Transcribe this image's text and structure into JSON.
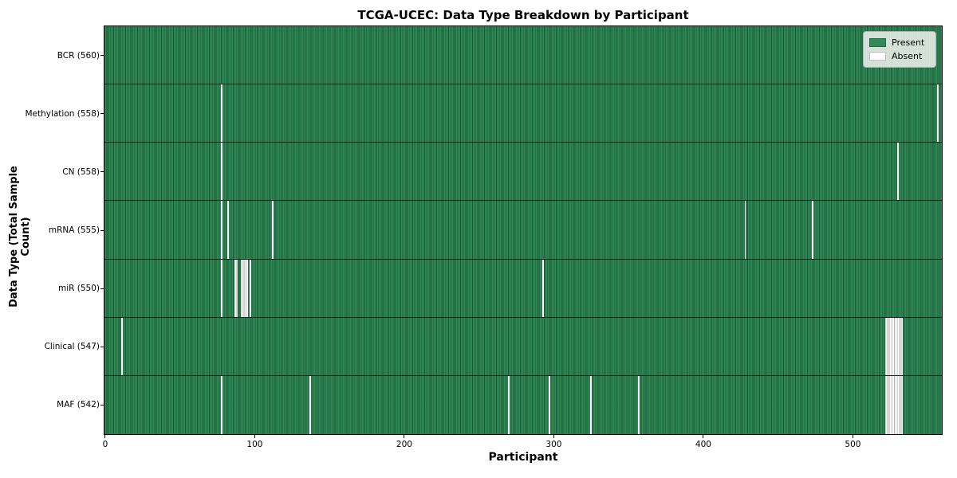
{
  "title": "TCGA-UCEC: Data Type Breakdown by Participant",
  "colors": {
    "present": "#2e8b57",
    "absent": "#ffffff",
    "cell_edge": "rgba(0,0,0,0.38)",
    "row_divider": "rgba(10,20,12,0.8)",
    "plot_border": "#000000",
    "legend_background": "#f2f2f0",
    "background": "#ffffff"
  },
  "chart_data": {
    "type": "heatmap",
    "title": "TCGA-UCEC: Data Type Breakdown by Participant",
    "xlabel": "Participant",
    "ylabel": "Data Type (Total Sample Count)",
    "n_participants": 560,
    "x_ticks": [
      0,
      100,
      200,
      300,
      400,
      500
    ],
    "x_range": [
      0,
      560
    ],
    "grid": false,
    "legend_position": "upper right",
    "legend": [
      {
        "label": "Present",
        "color": "#2e8b57"
      },
      {
        "label": "Absent",
        "color": "#ffffff"
      }
    ],
    "value_encoding": "green cell = data type present for participant, white cell = absent",
    "rows": [
      {
        "label": "BCR (560)",
        "data_type": "BCR",
        "total_sample_count": 560,
        "absent_participants": []
      },
      {
        "label": "Methylation (558)",
        "data_type": "Methylation",
        "total_sample_count": 558,
        "absent_participants": [
          78,
          557
        ]
      },
      {
        "label": "CN (558)",
        "data_type": "CN",
        "total_sample_count": 558,
        "absent_participants": [
          78,
          530
        ]
      },
      {
        "label": "mRNA (555)",
        "data_type": "mRNA",
        "total_sample_count": 555,
        "absent_participants": [
          78,
          82,
          112,
          428,
          473
        ]
      },
      {
        "label": "miR (550)",
        "data_type": "miR",
        "total_sample_count": 550,
        "absent_participants": [
          78,
          87,
          88,
          91,
          92,
          93,
          94,
          95,
          97,
          293
        ]
      },
      {
        "label": "Clinical (547)",
        "data_type": "Clinical",
        "total_sample_count": 547,
        "absent_participants": [
          11,
          522,
          523,
          524,
          525,
          526,
          527,
          528,
          529,
          530,
          531,
          532,
          533
        ]
      },
      {
        "label": "MAF (542)",
        "data_type": "MAF",
        "total_sample_count": 542,
        "absent_participants": [
          78,
          137,
          270,
          297,
          325,
          357,
          522,
          523,
          524,
          525,
          526,
          527,
          528,
          529,
          530,
          531,
          532,
          533
        ]
      }
    ]
  }
}
